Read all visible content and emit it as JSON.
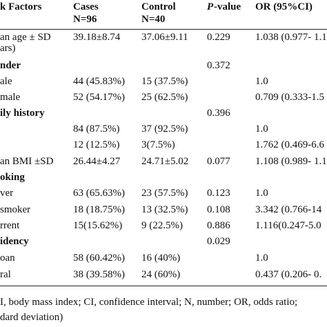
{
  "table": {
    "header": {
      "factor": "k Factors",
      "cases": [
        "Cases",
        "N=96"
      ],
      "control": [
        "Control",
        "N=40"
      ],
      "p": {
        "italic": "P",
        "text": "-value"
      },
      "or": "OR (95%CI)"
    },
    "rows": [
      {
        "label": [
          "an age ± SD",
          "ars)"
        ],
        "cases": "39.18±8.74",
        "control": "37.06±9.11",
        "p": "0.229",
        "or": "1.038 (0.977- 1.1"
      },
      {
        "label": "nder",
        "bold": true,
        "p": "0.372"
      },
      {
        "label": "ale",
        "cases": "44 (45.83%)",
        "control": "15 (37.5%)",
        "or": "1.0"
      },
      {
        "label": "male",
        "cases": "52 (54.17%)",
        "control": "25 (62.5%)",
        "or": "0.709 (0.333-1.5"
      },
      {
        "label": "ily history",
        "bold": true,
        "p": "0.396"
      },
      {
        "cases": "84 (87.5%)",
        "control": "37 (92.5%)",
        "or": "1.0"
      },
      {
        "cases": "12 (12.5%)",
        "control": "3(7.5%)",
        "or": "1.762 (0.469-6.6"
      },
      {
        "label": "an BMI ±SD",
        "cases": "26.44±4.27",
        "control": "24.71±5.02",
        "p": "0.077",
        "or": "1.108 (0.989- 1.1"
      },
      {
        "label": "oking",
        "bold": true
      },
      {
        "label": "ver",
        "cases": "63 (65.63%)",
        "control": "23 (57.5%)",
        "p": "0.123",
        "or": "1.0"
      },
      {
        "label": "smoker",
        "cases": "18 (18.75%)",
        "control": "13 (32.5%)",
        "p": "0.108",
        "or": "3.342 (0.766-14"
      },
      {
        "label": "rrent",
        "cases": "15(15.62%)",
        "control": "9 (22.5%)",
        "p": "0.886",
        "or": "1.116(0.247-5.0"
      },
      {
        "label": "idency",
        "bold": true,
        "p": "0.029"
      },
      {
        "label": "oan",
        "cases": "58 (60.42%)",
        "control": "16 (40%)",
        "or": "1.0"
      },
      {
        "label": "ral",
        "cases": "38 (39.58%)",
        "control": "24 (60%)",
        "or": "0.437 (0.206- 0."
      }
    ],
    "footnote": [
      "I, body mass index; CI, confidence interval; N, number; OR, odds ratio;",
      "dard deviation)"
    ]
  }
}
